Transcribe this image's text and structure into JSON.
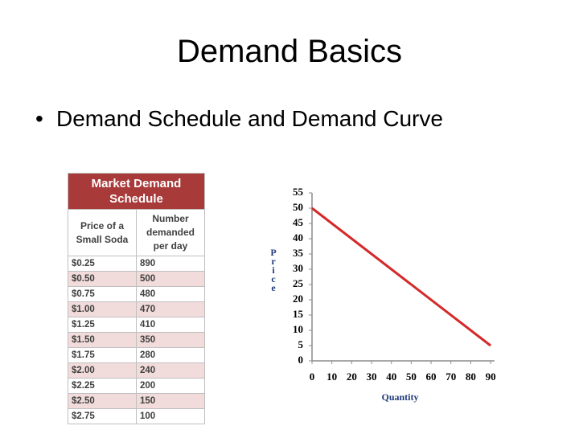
{
  "slide": {
    "title": "Demand Basics",
    "bullet": "Demand Schedule and Demand Curve"
  },
  "table": {
    "title": "Market Demand Schedule",
    "headers": [
      "Price of a Small Soda",
      "Number demanded per day"
    ],
    "rows": [
      [
        "$0.25",
        "890"
      ],
      [
        "$0.50",
        "500"
      ],
      [
        "$0.75",
        "480"
      ],
      [
        "$1.00",
        "470"
      ],
      [
        "$1.25",
        "410"
      ],
      [
        "$1.50",
        "350"
      ],
      [
        "$1.75",
        "280"
      ],
      [
        "$2.00",
        "240"
      ],
      [
        "$2.25",
        "200"
      ],
      [
        "$2.50",
        "150"
      ],
      [
        "$2.75",
        "100"
      ]
    ]
  },
  "chart_data": {
    "type": "line",
    "x_label": "Quantity",
    "y_label": "Price",
    "x": [
      0,
      90
    ],
    "values": [
      50,
      5
    ],
    "color": "#d42a2a",
    "xlim": [
      0,
      92
    ],
    "ylim": [
      0,
      55
    ],
    "xticks": [
      0,
      10,
      20,
      30,
      40,
      50,
      60,
      70,
      80,
      90
    ],
    "yticks": [
      0,
      5,
      10,
      15,
      20,
      25,
      30,
      35,
      40,
      45,
      50,
      55
    ]
  }
}
